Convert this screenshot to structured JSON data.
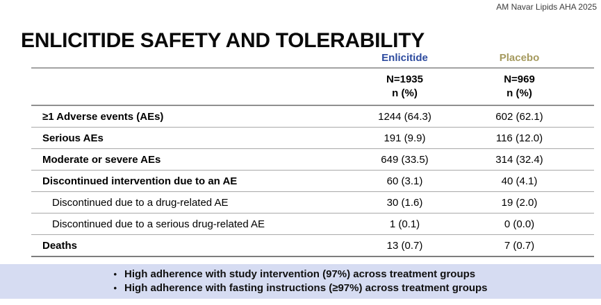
{
  "slide": {
    "attribution": "AM Navar Lipids AHA 2025",
    "title": "ENLICITIDE SAFETY AND TOLERABILITY"
  },
  "table": {
    "columns": [
      {
        "label": "Enlicitide",
        "n": "N=1935",
        "npct": "n (%)",
        "color": "#2c4a9e"
      },
      {
        "label": "Placebo",
        "n": "N=969",
        "npct": "n (%)",
        "color": "#a59a5e"
      }
    ],
    "rows": [
      {
        "label": "≥1 Adverse events (AEs)",
        "enlicitide": "1244 (64.3)",
        "placebo": "602 (62.1)"
      },
      {
        "label": "Serious AEs",
        "enlicitide": "191 (9.9)",
        "placebo": "116 (12.0)"
      },
      {
        "label": "Moderate or severe AEs",
        "enlicitide": "649 (33.5)",
        "placebo": "314 (32.4)"
      },
      {
        "label": "Discontinued intervention due to an AE",
        "enlicitide": "60 (3.1)",
        "placebo": "40 (4.1)"
      },
      {
        "label": "Discontinued due to a drug-related AE",
        "enlicitide": "30 (1.6)",
        "placebo": "19 (2.0)"
      },
      {
        "label": "Discontinued due to a serious drug-related AE",
        "enlicitide": "1 (0.1)",
        "placebo": "0 (0.0)"
      },
      {
        "label": "Deaths",
        "enlicitide": "13 (0.7)",
        "placebo": "7 (0.7)"
      }
    ]
  },
  "footnotes": {
    "background": "#d6dcf2",
    "bullet": "•",
    "items": [
      "High adherence with study intervention (97%) across treatment groups",
      "High adherence with fasting instructions (≥97%) across treatment groups"
    ]
  }
}
